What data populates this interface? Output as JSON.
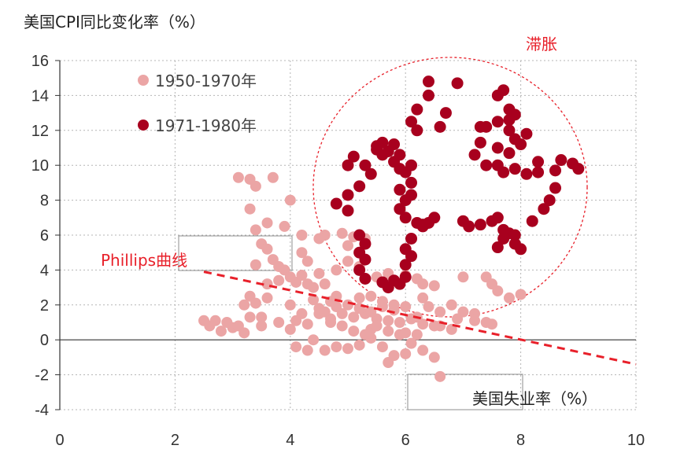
{
  "chart_data": {
    "type": "scatter",
    "title": "美国CPI同比变化率（%）",
    "xlabel": "美国失业率（%）",
    "xlim": [
      0,
      10
    ],
    "ylim": [
      -4,
      16
    ],
    "x_ticks": [
      "0",
      "2",
      "4",
      "6",
      "8",
      "10"
    ],
    "y_ticks": [
      "-4",
      "-2",
      "0",
      "2",
      "4",
      "6",
      "8",
      "10",
      "12",
      "14",
      "16"
    ],
    "grid": "dotted",
    "legend_position": "top-left",
    "annotations": {
      "phillips_label": "Phillips曲线",
      "stagflation_label": "滞胀"
    },
    "phillips_line": {
      "x": [
        2.5,
        10
      ],
      "y": [
        3.9,
        -1.4
      ]
    },
    "series": [
      {
        "name": "1950-1970年",
        "color": "#eba5a5",
        "points": [
          [
            2.5,
            1.1
          ],
          [
            2.6,
            0.8
          ],
          [
            2.7,
            1.1
          ],
          [
            2.8,
            0.5
          ],
          [
            2.9,
            1.0
          ],
          [
            3.0,
            0.7
          ],
          [
            3.1,
            0.8
          ],
          [
            3.2,
            0.4
          ],
          [
            3.3,
            1.3
          ],
          [
            3.2,
            2.0
          ],
          [
            3.3,
            2.5
          ],
          [
            3.4,
            2.1
          ],
          [
            3.5,
            1.3
          ],
          [
            3.6,
            2.4
          ],
          [
            3.1,
            9.3
          ],
          [
            3.3,
            9.2
          ],
          [
            3.4,
            8.8
          ],
          [
            3.7,
            9.3
          ],
          [
            3.3,
            7.5
          ],
          [
            3.4,
            6.3
          ],
          [
            3.5,
            5.5
          ],
          [
            3.6,
            5.2
          ],
          [
            3.7,
            4.6
          ],
          [
            3.8,
            4.2
          ],
          [
            3.9,
            4.0
          ],
          [
            3.9,
            6.5
          ],
          [
            4.0,
            8.0
          ],
          [
            3.4,
            4.3
          ],
          [
            3.6,
            3.2
          ],
          [
            3.8,
            3.4
          ],
          [
            4.0,
            3.6
          ],
          [
            4.1,
            3.3
          ],
          [
            4.2,
            3.7
          ],
          [
            4.3,
            3.2
          ],
          [
            4.4,
            3.0
          ],
          [
            4.6,
            6.0
          ],
          [
            4.9,
            6.1
          ],
          [
            5.0,
            5.4
          ],
          [
            5.1,
            5.9
          ],
          [
            4.6,
            3.2
          ],
          [
            4.7,
            2.2
          ],
          [
            4.8,
            2.5
          ],
          [
            5.0,
            2.0
          ],
          [
            5.2,
            2.4
          ],
          [
            5.4,
            2.5
          ],
          [
            5.6,
            2.2
          ],
          [
            5.8,
            1.7
          ],
          [
            6.0,
            1.9
          ],
          [
            6.3,
            2.4
          ],
          [
            6.5,
            3.1
          ],
          [
            7.0,
            3.6
          ],
          [
            7.4,
            3.6
          ],
          [
            7.5,
            3.2
          ],
          [
            7.6,
            2.8
          ],
          [
            7.8,
            2.4
          ],
          [
            8.0,
            2.6
          ],
          [
            6.8,
            2.0
          ],
          [
            7.0,
            1.6
          ],
          [
            7.2,
            1.5
          ],
          [
            7.4,
            1.0
          ],
          [
            4.0,
            2.0
          ],
          [
            4.2,
            1.5
          ],
          [
            4.4,
            2.3
          ],
          [
            4.5,
            1.8
          ],
          [
            4.7,
            1.2
          ],
          [
            4.9,
            1.5
          ],
          [
            5.1,
            1.3
          ],
          [
            5.3,
            1.5
          ],
          [
            5.5,
            1.2
          ],
          [
            5.7,
            1.1
          ],
          [
            5.9,
            1.0
          ],
          [
            6.1,
            1.2
          ],
          [
            6.3,
            0.9
          ],
          [
            6.5,
            0.8
          ],
          [
            4.0,
            0.6
          ],
          [
            4.1,
            -0.4
          ],
          [
            4.3,
            -0.6
          ],
          [
            4.4,
            0.0
          ],
          [
            4.6,
            -0.6
          ],
          [
            4.8,
            -0.4
          ],
          [
            5.0,
            -0.5
          ],
          [
            5.2,
            -0.3
          ],
          [
            5.4,
            0.1
          ],
          [
            5.6,
            -0.4
          ],
          [
            5.8,
            -0.9
          ],
          [
            6.0,
            -0.8
          ],
          [
            6.1,
            -0.2
          ],
          [
            6.3,
            -0.6
          ],
          [
            6.5,
            -1.0
          ],
          [
            6.6,
            -2.1
          ],
          [
            5.7,
            -1.3
          ],
          [
            5.4,
            0.6
          ],
          [
            5.9,
            0.3
          ],
          [
            6.2,
            0.3
          ],
          [
            6.6,
            0.8
          ],
          [
            6.8,
            0.6
          ],
          [
            6.9,
            1.2
          ],
          [
            7.2,
            1.1
          ],
          [
            7.5,
            0.9
          ],
          [
            3.5,
            0.8
          ],
          [
            3.6,
            6.7
          ],
          [
            4.2,
            6.0
          ],
          [
            4.5,
            5.8
          ],
          [
            5.3,
            5.8
          ],
          [
            5.5,
            3.6
          ],
          [
            5.7,
            3.8
          ],
          [
            6.0,
            3.7
          ],
          [
            6.2,
            3.5
          ],
          [
            6.3,
            3.2
          ],
          [
            5.2,
            4.2
          ],
          [
            5.0,
            4.5
          ],
          [
            4.8,
            4.0
          ],
          [
            4.5,
            3.8
          ],
          [
            4.3,
            4.5
          ],
          [
            4.2,
            5.0
          ],
          [
            4.5,
            1.5
          ],
          [
            4.7,
            1.0
          ],
          [
            4.9,
            0.8
          ],
          [
            5.1,
            0.5
          ],
          [
            5.3,
            0.3
          ],
          [
            5.5,
            0.8
          ],
          [
            5.7,
            0.5
          ],
          [
            6.0,
            0.4
          ],
          [
            6.2,
            1.3
          ],
          [
            3.8,
            1.0
          ],
          [
            4.1,
            1.1
          ],
          [
            4.3,
            0.9
          ],
          [
            4.6,
            1.6
          ],
          [
            4.8,
            1.9
          ],
          [
            5.2,
            1.8
          ],
          [
            5.4,
            1.6
          ],
          [
            5.6,
            1.9
          ],
          [
            5.8,
            2.0
          ],
          [
            6.4,
            1.9
          ],
          [
            6.6,
            1.6
          ]
        ]
      },
      {
        "name": "1971-1980年",
        "color": "#a8001e",
        "points": [
          [
            4.8,
            7.8
          ],
          [
            5.0,
            7.4
          ],
          [
            5.0,
            8.3
          ],
          [
            5.2,
            8.8
          ],
          [
            5.4,
            9.5
          ],
          [
            5.0,
            10.0
          ],
          [
            5.1,
            10.5
          ],
          [
            5.3,
            10.0
          ],
          [
            5.5,
            10.9
          ],
          [
            5.6,
            11.3
          ],
          [
            5.7,
            10.8
          ],
          [
            5.8,
            11.2
          ],
          [
            5.9,
            10.6
          ],
          [
            5.9,
            9.8
          ],
          [
            6.0,
            9.6
          ],
          [
            6.1,
            9.0
          ],
          [
            6.1,
            8.3
          ],
          [
            6.0,
            8.0
          ],
          [
            5.9,
            8.6
          ],
          [
            5.9,
            7.5
          ],
          [
            6.0,
            7.0
          ],
          [
            6.2,
            6.7
          ],
          [
            6.3,
            6.5
          ],
          [
            6.4,
            6.7
          ],
          [
            6.5,
            7.0
          ],
          [
            5.2,
            6.0
          ],
          [
            5.3,
            5.5
          ],
          [
            5.2,
            5.0
          ],
          [
            5.3,
            4.6
          ],
          [
            5.2,
            4.0
          ],
          [
            5.3,
            3.5
          ],
          [
            5.6,
            3.3
          ],
          [
            5.7,
            3.0
          ],
          [
            5.8,
            3.4
          ],
          [
            5.9,
            3.2
          ],
          [
            6.0,
            3.6
          ],
          [
            6.0,
            4.3
          ],
          [
            6.1,
            4.8
          ],
          [
            6.0,
            5.2
          ],
          [
            6.1,
            5.8
          ],
          [
            6.1,
            10.0
          ],
          [
            6.1,
            12.5
          ],
          [
            6.2,
            13.2
          ],
          [
            6.2,
            12.0
          ],
          [
            6.4,
            14.8
          ],
          [
            6.4,
            14.0
          ],
          [
            6.6,
            12.2
          ],
          [
            6.9,
            14.7
          ],
          [
            7.1,
            6.5
          ],
          [
            7.3,
            6.6
          ],
          [
            7.5,
            6.8
          ],
          [
            7.6,
            7.0
          ],
          [
            7.7,
            6.3
          ],
          [
            7.8,
            6.1
          ],
          [
            7.9,
            6.0
          ],
          [
            7.6,
            5.3
          ],
          [
            7.7,
            5.8
          ],
          [
            7.9,
            5.5
          ],
          [
            8.0,
            5.2
          ],
          [
            8.2,
            6.8
          ],
          [
            8.4,
            7.5
          ],
          [
            8.5,
            8.0
          ],
          [
            8.6,
            8.7
          ],
          [
            8.6,
            9.7
          ],
          [
            8.7,
            10.3
          ],
          [
            8.9,
            10.1
          ],
          [
            9.0,
            9.8
          ],
          [
            8.3,
            9.6
          ],
          [
            8.1,
            11.8
          ],
          [
            8.0,
            11.2
          ],
          [
            7.8,
            12.0
          ],
          [
            7.9,
            12.9
          ],
          [
            7.8,
            13.2
          ],
          [
            7.8,
            12.6
          ],
          [
            7.9,
            11.5
          ],
          [
            7.8,
            10.7
          ],
          [
            7.6,
            10.0
          ],
          [
            7.7,
            9.6
          ],
          [
            7.4,
            10.0
          ],
          [
            7.2,
            10.6
          ],
          [
            7.3,
            11.3
          ],
          [
            7.4,
            12.2
          ],
          [
            7.6,
            12.5
          ],
          [
            7.7,
            14.3
          ],
          [
            7.6,
            14.0
          ],
          [
            7.9,
            9.8
          ],
          [
            7.0,
            6.8
          ],
          [
            7.3,
            12.2
          ],
          [
            6.7,
            13.0
          ],
          [
            5.6,
            10.6
          ],
          [
            5.5,
            11.1
          ],
          [
            5.8,
            10.2
          ],
          [
            6.3,
            6.6
          ],
          [
            7.6,
            11.0
          ],
          [
            8.1,
            9.5
          ],
          [
            8.3,
            10.2
          ]
        ]
      }
    ]
  }
}
